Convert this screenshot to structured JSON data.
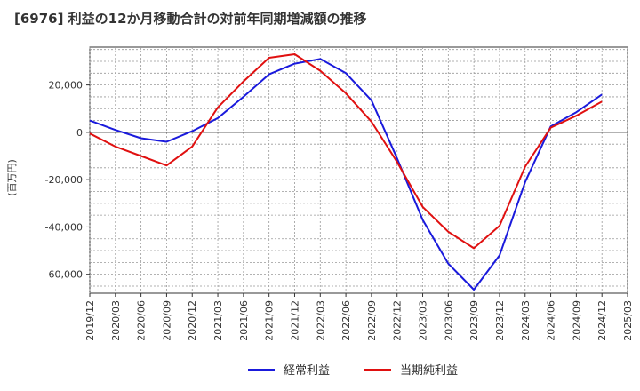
{
  "chart_data": {
    "type": "line",
    "title": "[6976]  利益の12か月移動合計の対前年同期増減額の推移",
    "ylabel": "(百万円)",
    "xlabel": "",
    "ylim": [
      -68000,
      36000
    ],
    "yticks": [
      20000,
      0,
      -20000,
      -40000,
      -60000
    ],
    "ytick_labels": [
      "20,000",
      "0",
      "-20,000",
      "-40,000",
      "-60,000"
    ],
    "categories": [
      "2019/12",
      "2020/03",
      "2020/06",
      "2020/09",
      "2020/12",
      "2021/03",
      "2021/06",
      "2021/09",
      "2021/12",
      "2022/03",
      "2022/06",
      "2022/09",
      "2022/12",
      "2023/03",
      "2023/06",
      "2023/09",
      "2023/12",
      "2024/03",
      "2024/06",
      "2024/09",
      "2024/12",
      "2025/03"
    ],
    "grid": true,
    "legend_position": "bottom-center",
    "series": [
      {
        "name": "経常利益",
        "color": "#1a1adc",
        "values": [
          5000,
          1000,
          -2500,
          -4000,
          500,
          6000,
          15000,
          24500,
          29000,
          31000,
          25000,
          13500,
          -11000,
          -37000,
          -55500,
          -66500,
          -52000,
          -21000,
          2500,
          8500,
          16000,
          null
        ]
      },
      {
        "name": "当期純利益",
        "color": "#e01010",
        "values": [
          -500,
          -6000,
          -10000,
          -14000,
          -6000,
          10500,
          21500,
          31500,
          33000,
          26000,
          16500,
          4500,
          -12500,
          -31500,
          -42000,
          -49000,
          -39500,
          -14500,
          2000,
          7000,
          13000,
          null
        ]
      }
    ]
  }
}
